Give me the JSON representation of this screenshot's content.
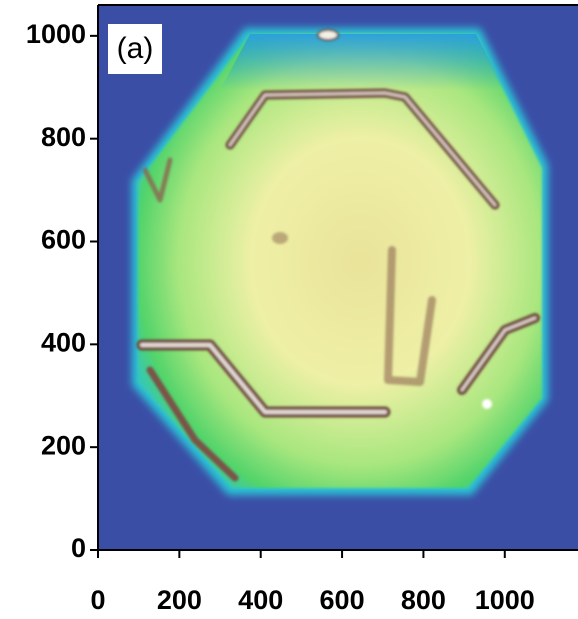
{
  "chart_data": {
    "type": "image",
    "panel_label": "(a)",
    "xlim": [
      0,
      1180
    ],
    "xticks": [
      0,
      200,
      400,
      600,
      800,
      1000
    ],
    "ylim": [
      0,
      1060
    ],
    "yticks": [
      0,
      200,
      400,
      600,
      800,
      1000
    ]
  }
}
